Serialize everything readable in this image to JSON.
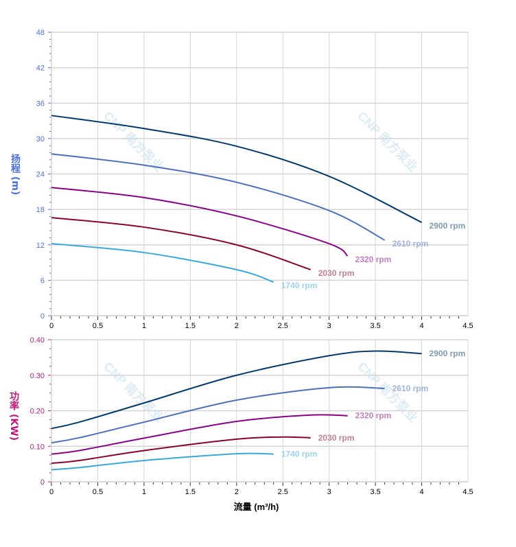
{
  "watermark": "CNP 南方泵业",
  "chart_data": [
    {
      "type": "line",
      "ylabel": "扬程 (m)",
      "xlim": [
        0,
        4.5
      ],
      "ylim": [
        0,
        48
      ],
      "xticks": [
        "0",
        "0.5",
        "1",
        "1.5",
        "2",
        "2.5",
        "3",
        "3.5",
        "4",
        "4.5"
      ],
      "yticks": [
        "0",
        "6",
        "12",
        "18",
        "24",
        "30",
        "36",
        "42",
        "48"
      ],
      "grid": true,
      "tick_color": "#4a6fe0",
      "series": [
        {
          "name": "2900 rpm",
          "color": "#003a6e",
          "label_color": "#7f9ab3",
          "x": [
            0,
            1,
            2,
            3,
            4
          ],
          "y": [
            33.9,
            31.7,
            28.7,
            23.6,
            15.8
          ]
        },
        {
          "name": "2610 rpm",
          "color": "#4a6fbf",
          "label_color": "#9fb3de",
          "x": [
            0,
            1,
            2,
            3,
            3.6
          ],
          "y": [
            27.4,
            25.5,
            22.6,
            17.8,
            12.8
          ]
        },
        {
          "name": "2320 rpm",
          "color": "#8b008b",
          "label_color": "#c27fc2",
          "x": [
            0,
            1,
            2,
            3,
            3.2
          ],
          "y": [
            21.7,
            20.0,
            16.9,
            12.2,
            10.1
          ]
        },
        {
          "name": "2030 rpm",
          "color": "#8b0030",
          "label_color": "#c47f96",
          "x": [
            0,
            1,
            2,
            2.8
          ],
          "y": [
            16.6,
            15.0,
            12.0,
            7.8
          ]
        },
        {
          "name": "1740 rpm",
          "color": "#3aa8e0",
          "label_color": "#9dd3ef",
          "x": [
            0,
            1,
            2,
            2.4
          ],
          "y": [
            12.2,
            10.7,
            7.8,
            5.7
          ]
        }
      ]
    },
    {
      "type": "line",
      "ylabel": "功率 (KW)",
      "xlabel": "流量 (m³/h)",
      "xlim": [
        0,
        4.5
      ],
      "ylim": [
        0,
        0.4
      ],
      "xticks": [
        "0",
        "0.5",
        "1",
        "1.5",
        "2",
        "2.5",
        "3",
        "3.5",
        "4",
        "4.5"
      ],
      "yticks": [
        "0",
        "0.10",
        "0.20",
        "0.30",
        "0.40"
      ],
      "grid": true,
      "tick_color": "#c0187a",
      "series": [
        {
          "name": "2900 rpm",
          "color": "#003a6e",
          "label_color": "#7f9ab3",
          "x": [
            0,
            0.3,
            1,
            2,
            3,
            3.5,
            4
          ],
          "y": [
            0.15,
            0.168,
            0.222,
            0.3,
            0.355,
            0.368,
            0.361
          ]
        },
        {
          "name": "2610 rpm",
          "color": "#4a6fbf",
          "label_color": "#9fb3de",
          "x": [
            0,
            0.3,
            1,
            2,
            3,
            3.6
          ],
          "y": [
            0.11,
            0.124,
            0.168,
            0.23,
            0.265,
            0.263
          ]
        },
        {
          "name": "2320 rpm",
          "color": "#8b008b",
          "label_color": "#c27fc2",
          "x": [
            0,
            0.3,
            1,
            2,
            2.8,
            3.2
          ],
          "y": [
            0.078,
            0.088,
            0.123,
            0.17,
            0.188,
            0.186
          ]
        },
        {
          "name": "2030 rpm",
          "color": "#8b0030",
          "label_color": "#c47f96",
          "x": [
            0,
            0.3,
            1,
            2,
            2.5,
            2.8
          ],
          "y": [
            0.052,
            0.06,
            0.088,
            0.12,
            0.126,
            0.124
          ]
        },
        {
          "name": "1740 rpm",
          "color": "#3aa8e0",
          "label_color": "#9dd3ef",
          "x": [
            0,
            0.3,
            1,
            2,
            2.4
          ],
          "y": [
            0.034,
            0.04,
            0.06,
            0.079,
            0.078
          ]
        }
      ]
    }
  ]
}
